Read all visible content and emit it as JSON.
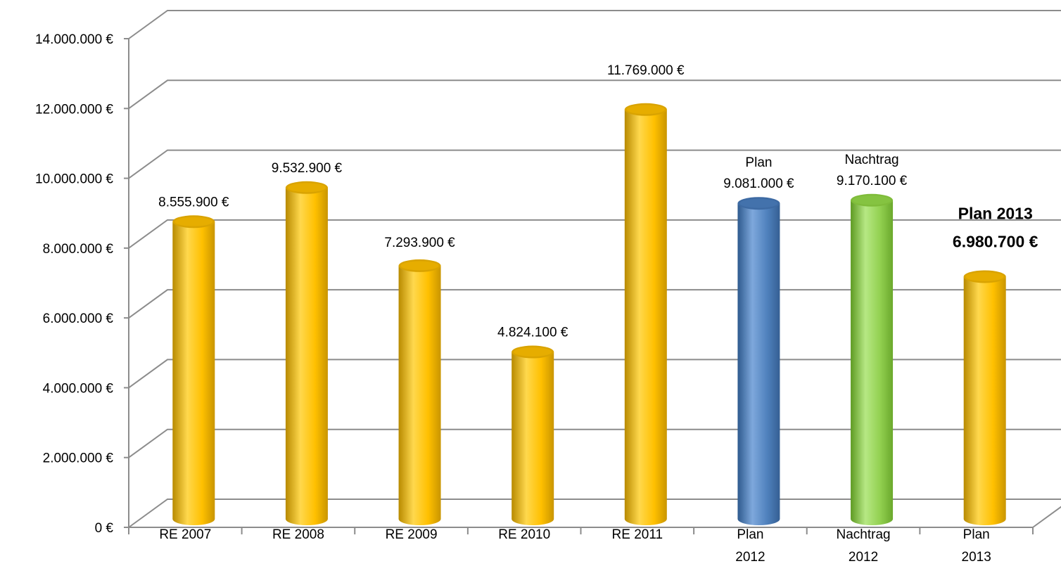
{
  "chart_data": {
    "type": "bar",
    "categories": [
      [
        "RE 2007"
      ],
      [
        "RE 2008"
      ],
      [
        "RE 2009"
      ],
      [
        "RE 2010"
      ],
      [
        "RE 2011"
      ],
      [
        "Plan",
        "2012"
      ],
      [
        "Nachtrag",
        "2012"
      ],
      [
        "Plan",
        "2013"
      ]
    ],
    "values": [
      8555900,
      9532900,
      7293900,
      4824100,
      11769000,
      9081000,
      9170100,
      6980700
    ],
    "data_labels": [
      [
        "8.555.900 €"
      ],
      [
        "9.532.900 €"
      ],
      [
        "7.293.900 €"
      ],
      [
        "4.824.100 €"
      ],
      [
        "11.769.000 €"
      ],
      [
        "Plan",
        "9.081.000 €"
      ],
      [
        "Nachtrag",
        "9.170.100 €"
      ],
      [
        "Plan 2013",
        "6.980.700 €"
      ]
    ],
    "bold_labels": [
      false,
      false,
      false,
      false,
      false,
      false,
      false,
      true
    ],
    "bar_colors": [
      "gold",
      "gold",
      "gold",
      "gold",
      "gold",
      "blue",
      "green",
      "gold"
    ],
    "colors": {
      "gold": "#ffc000",
      "blue": "#4f81bd",
      "green": "#92d050"
    },
    "y_ticks": [
      {
        "value": 0,
        "label": "0 €"
      },
      {
        "value": 2000000,
        "label": "2.000.000 €"
      },
      {
        "value": 4000000,
        "label": "4.000.000 €"
      },
      {
        "value": 6000000,
        "label": "6.000.000 €"
      },
      {
        "value": 8000000,
        "label": "8.000.000 €"
      },
      {
        "value": 10000000,
        "label": "10.000.000 €"
      },
      {
        "value": 12000000,
        "label": "12.000.000 €"
      },
      {
        "value": 14000000,
        "label": "14.000.000 €"
      }
    ],
    "ylim": [
      0,
      14000000
    ],
    "title": "",
    "xlabel": "",
    "ylabel": "",
    "grid": true,
    "legend": false,
    "style": "3d-cylinder"
  }
}
